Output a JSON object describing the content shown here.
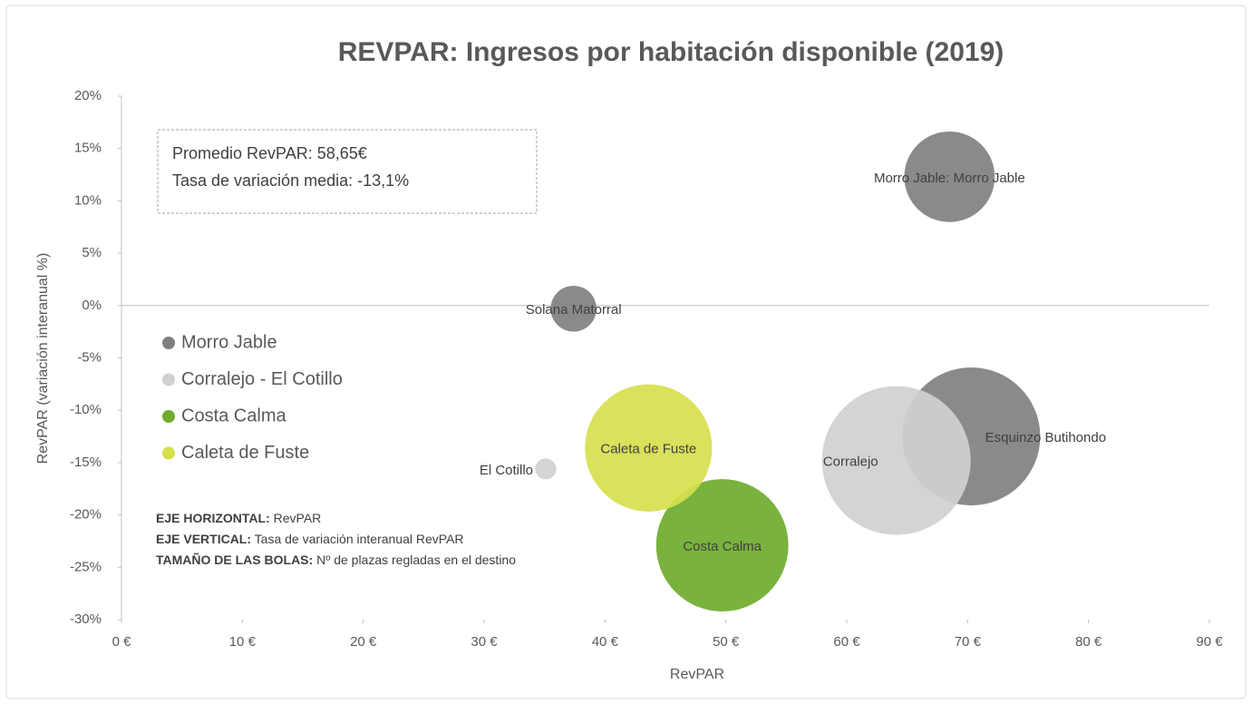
{
  "chart_data": {
    "type": "bubble",
    "title": "REVPAR: Ingresos por habitación disponible (2019)",
    "x_label": "RevPAR",
    "y_label": "RevPAR (variación interanual %)",
    "xlim": [
      0,
      90
    ],
    "xticks": [
      {
        "value": 0,
        "label": "0 €"
      },
      {
        "value": 10,
        "label": "10 €"
      },
      {
        "value": 20,
        "label": "20 €"
      },
      {
        "value": 30,
        "label": "30 €"
      },
      {
        "value": 40,
        "label": "40 €"
      },
      {
        "value": 50,
        "label": "50 €"
      },
      {
        "value": 60,
        "label": "60 €"
      },
      {
        "value": 70,
        "label": "70 €"
      },
      {
        "value": 80,
        "label": "80 €"
      },
      {
        "value": 90,
        "label": "90 €"
      }
    ],
    "ylim": [
      -30,
      20
    ],
    "yticks": [
      {
        "value": -30,
        "label": "-30%"
      },
      {
        "value": -25,
        "label": "-25%"
      },
      {
        "value": -20,
        "label": "-20%"
      },
      {
        "value": -15,
        "label": "-15%"
      },
      {
        "value": -10,
        "label": "-10%"
      },
      {
        "value": -5,
        "label": "-5%"
      },
      {
        "value": 0,
        "label": "0%"
      },
      {
        "value": 5,
        "label": "5%"
      },
      {
        "value": 10,
        "label": "10%"
      },
      {
        "value": 15,
        "label": "15%"
      },
      {
        "value": 20,
        "label": "20%"
      }
    ],
    "grid": false,
    "legend": "left",
    "series": [
      {
        "name": "Morro Jable",
        "color": "#808080",
        "x": [
          68.5,
          37.4,
          70.3
        ],
        "values": [
          12.3,
          -0.3,
          -12.5
        ],
        "sizes": [
          7400,
          1900,
          17200
        ],
        "labels": [
          "Morro Jable: Morro Jable",
          "Solana Matorral",
          "Esquinzo Butihondo"
        ]
      },
      {
        "name": "Corralejo - El Cotillo",
        "color": "#d0d0d0",
        "x": [
          64.1,
          35.1
        ],
        "values": [
          -14.8,
          -15.6
        ],
        "sizes": [
          20000,
          400
        ],
        "labels": [
          "Corralejo",
          "El Cotillo"
        ]
      },
      {
        "name": "Costa Calma",
        "color": "#6fab2e",
        "x": [
          49.7
        ],
        "values": [
          -22.9
        ],
        "sizes": [
          15800
        ],
        "labels": [
          "Costa Calma"
        ]
      },
      {
        "name": "Caleta de Fuste",
        "color": "#d6e04c",
        "x": [
          43.6
        ],
        "values": [
          -13.6
        ],
        "sizes": [
          14600
        ],
        "labels": [
          "Caleta de Fuste"
        ]
      }
    ],
    "annotation_box": [
      "Promedio RevPAR: 58,65€",
      "Tasa de variación media: -13,1%"
    ],
    "notes": [
      {
        "bold": "EJE HORIZONTAL:",
        "text": " RevPAR"
      },
      {
        "bold": "EJE VERTICAL:",
        "text": " Tasa de variación interanual RevPAR"
      },
      {
        "bold": "TAMAÑO DE LAS BOLAS:",
        "text": " Nº de plazas regladas en el destino"
      }
    ]
  }
}
